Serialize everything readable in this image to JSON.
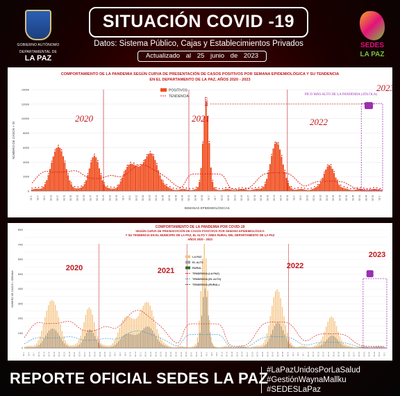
{
  "header": {
    "title": "SITUACIÓN COVID -19",
    "subtitle": "Datos: Sistema Público, Cajas y Establecimientos Privados",
    "updated": "Actualizado al 25 junio de 2023"
  },
  "logos": {
    "left_line1": "GOBIERNO AUTÓNOMO",
    "left_line2": "DEPARTAMENTAL DE",
    "left_name": "LA PAZ",
    "right_name": "SEDES",
    "right_name2": "LA PAZ"
  },
  "footer": {
    "report": "REPORTE OFICIAL SEDES LA PAZ",
    "tags": [
      "#LaPazUnidosPorLaSalud",
      "#GestiónWaynaMallku",
      "#SEDESLaPaz"
    ]
  },
  "colors": {
    "bars": "#f04e1f",
    "trend": "#e02020",
    "la_paz": "#f5c07a",
    "el_alto": "#a0a0a0",
    "rural": "#2e6b2e",
    "accent": "#9b2fb0"
  },
  "chart_data": [
    {
      "type": "bar",
      "title": "COMPORTAMIENTO DE LA PANDEMIA SEGÚN CURVA DE PRESENTACIÓN DE CASOS POSITIVOS POR SEMANA EPIDEMIOLÓGICA Y SU TENDENCIA",
      "subtitle": "EN EL DEPARTAMENTO DE LA PAZ, AÑOS 2020 - 2023",
      "ylabel": "NÚMERO DE CASOS + SI",
      "xlabel": "SEMANAS EPIDEMIOLÓGICAS",
      "ylim": [
        0,
        14000
      ],
      "yticks": [
        0,
        2000,
        4000,
        6000,
        8000,
        10000,
        12000,
        14000
      ],
      "legend": [
        "POSITIVOS",
        "TENDENCIA"
      ],
      "legend_position": "top-left",
      "year_labels": [
        "2020",
        "2021",
        "2022",
        "2023"
      ],
      "peak_label": "11877",
      "annotation": "PICO MÁS ALTO DE LA PANDEMIA (4TA OLA)",
      "series": [
        {
          "name": "POSITIVOS",
          "peaks": [
            {
              "center": 16,
              "height": 6000,
              "width": 4
            },
            {
              "center": 38,
              "height": 4600,
              "width": 3.2
            },
            {
              "center": 60,
              "height": 3500,
              "width": 4
            },
            {
              "center": 72,
              "height": 5000,
              "width": 4.5
            },
            {
              "center": 106,
              "height": 11877,
              "width": 1.8
            },
            {
              "center": 149,
              "height": 6600,
              "width": 3.5
            },
            {
              "center": 181,
              "height": 3300,
              "width": 3.5
            }
          ],
          "base": 300,
          "weeks": 214
        }
      ]
    },
    {
      "type": "bar",
      "title": "COMPORTAMIENTO DE LA PANDEMIA POR COVID-19",
      "subtitle": "SEGÚN CURVA DE PRESENTACIÓN DE CASOS POSITIVOS POR SEMANA EPIDEMIOLÓGICA Y SU TENDENCIA EN EL MUNICIPIO DE LA PAZ, EL ALTO Y ÁREA RURAL DEL DEPARTAMENTO DE LA PAZ",
      "subtitle2": "AÑOS 2020 - 2023",
      "ylabel": "NÚMERO DE CASOS x SEMANA",
      "ylim": [
        0,
        8000
      ],
      "yticks": [
        0,
        500,
        1000,
        1500,
        2000,
        2500,
        3000,
        3500,
        4000,
        4500,
        5000,
        5500,
        6000,
        6500,
        7000,
        7500,
        8000
      ],
      "year_labels": [
        "2020",
        "2021",
        "2022",
        "2023"
      ],
      "legend": [
        "LA PAZ",
        "EL ALTO",
        "RURAL",
        "TENDENCIA (LA PAZ)",
        "TENDENCIA (EL ALTO)",
        "TENDENCIA (RURAL)"
      ],
      "legend_position": "top-left",
      "series": [
        {
          "name": "LA PAZ",
          "peaks": [
            {
              "center": 16,
              "height": 3200,
              "width": 4
            },
            {
              "center": 38,
              "height": 2600,
              "width": 3.2
            },
            {
              "center": 60,
              "height": 2000,
              "width": 4
            },
            {
              "center": 72,
              "height": 3000,
              "width": 4.5
            },
            {
              "center": 106,
              "height": 7000,
              "width": 1.8
            },
            {
              "center": 149,
              "height": 3900,
              "width": 3.5
            },
            {
              "center": 181,
              "height": 2000,
              "width": 3.5
            }
          ],
          "base": 150,
          "weeks": 214
        },
        {
          "name": "EL ALTO",
          "peaks": [
            {
              "center": 16,
              "height": 1300,
              "width": 4
            },
            {
              "center": 38,
              "height": 1200,
              "width": 3.2
            },
            {
              "center": 60,
              "height": 900,
              "width": 4
            },
            {
              "center": 72,
              "height": 1400,
              "width": 4.5
            },
            {
              "center": 106,
              "height": 4000,
              "width": 1.8
            },
            {
              "center": 149,
              "height": 1700,
              "width": 3.5
            },
            {
              "center": 181,
              "height": 800,
              "width": 3.5
            }
          ],
          "base": 60,
          "weeks": 214
        }
      ]
    }
  ]
}
